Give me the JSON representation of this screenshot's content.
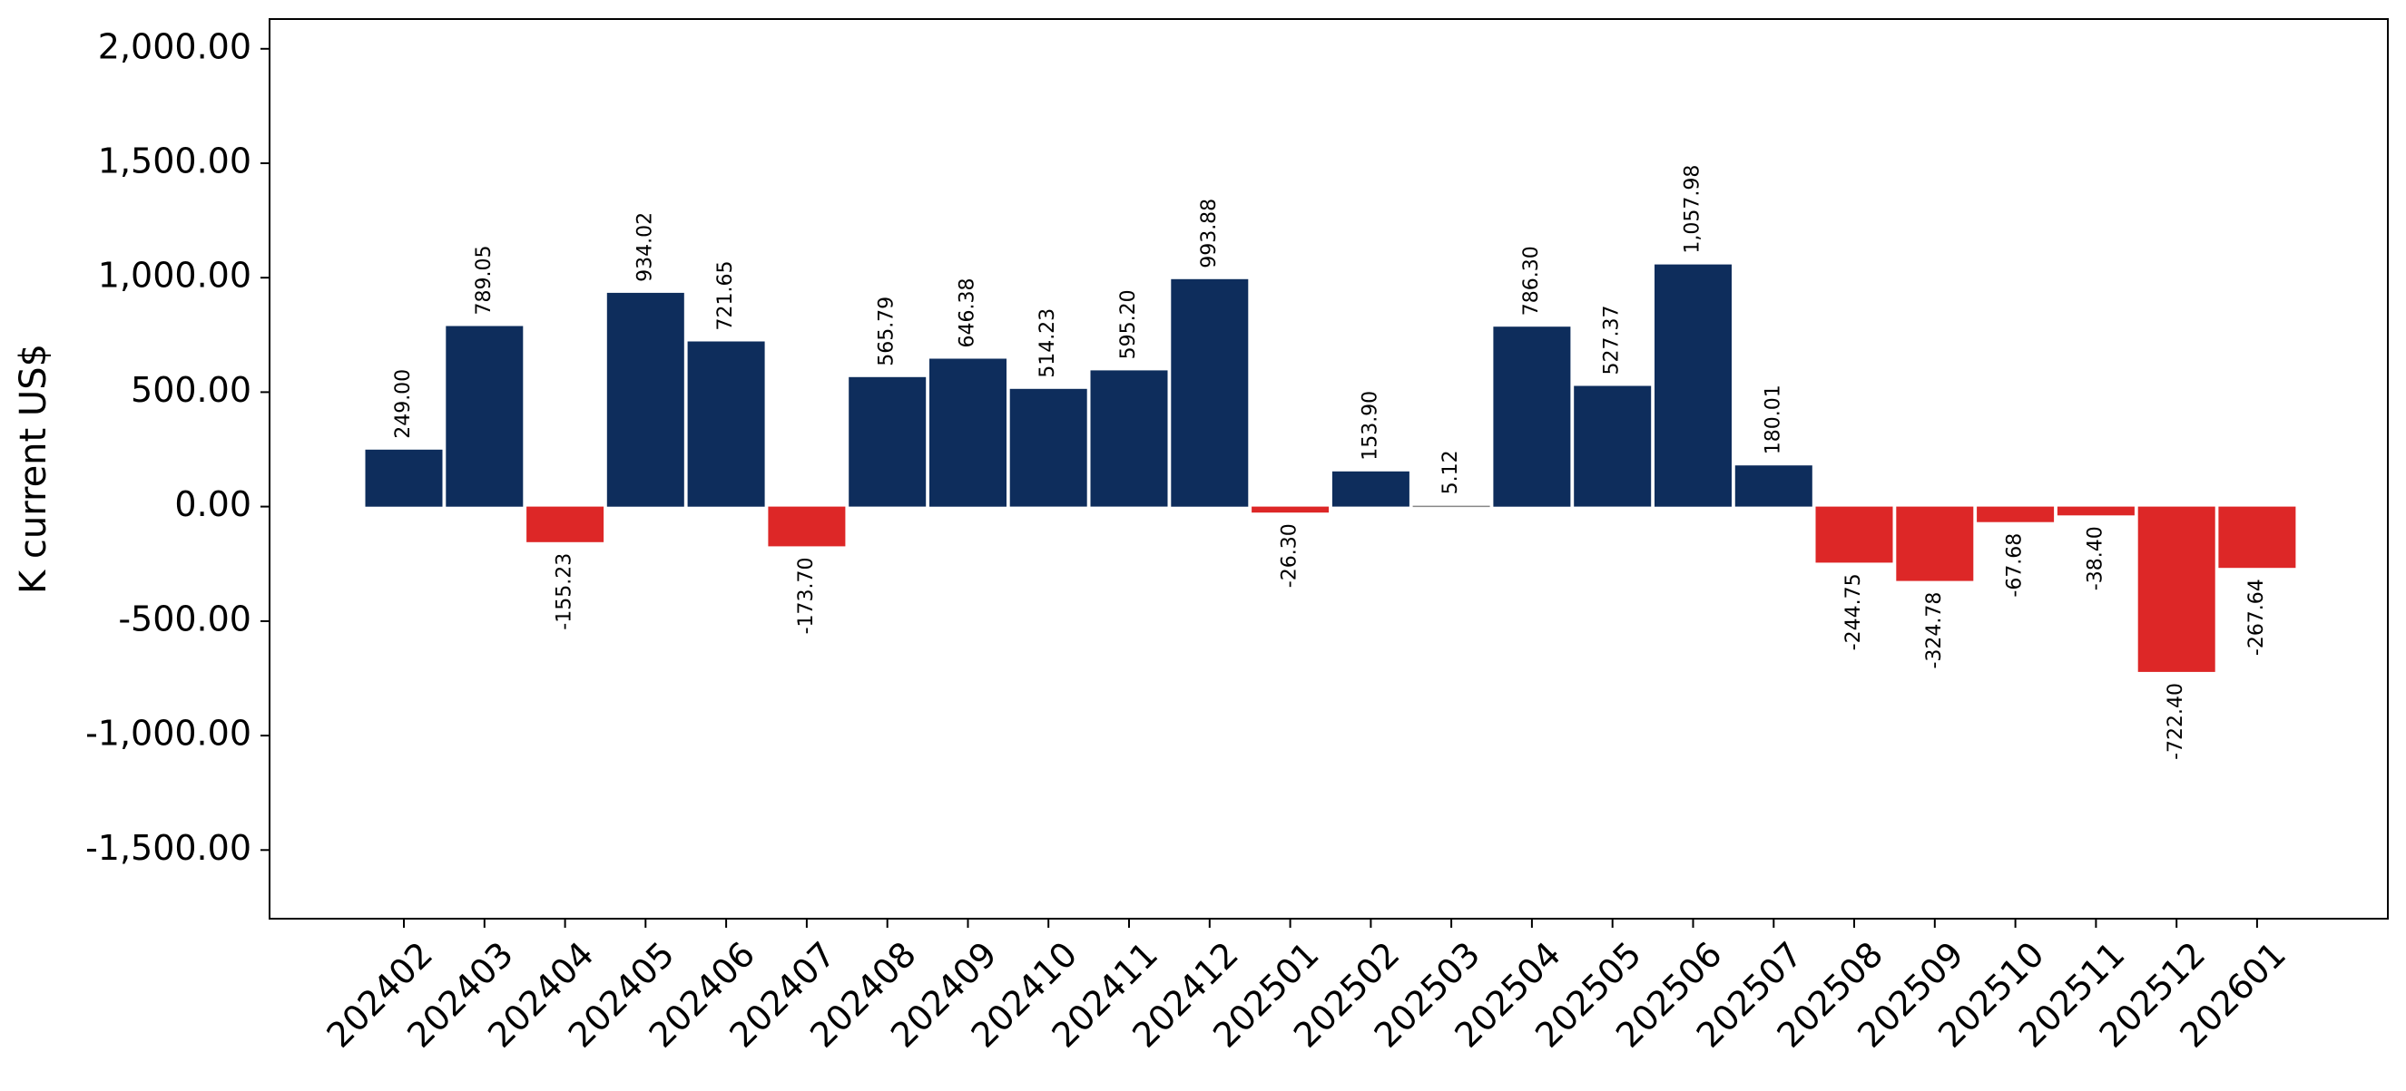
{
  "chart_data": {
    "type": "bar",
    "title": "",
    "xlabel": "",
    "ylabel": "K current US$",
    "ylim": [
      -1800,
      2130
    ],
    "yticks": [
      -1500,
      -1000,
      -500,
      0,
      500,
      1000,
      1500,
      2000
    ],
    "ytick_labels": [
      "-1,500.00",
      "-1,000.00",
      "-500.00",
      "0.00",
      "500.00",
      "1,000.00",
      "1,500.00",
      "2,000.00"
    ],
    "grid": false,
    "legend": "none",
    "colors": {
      "positive": "#0e2d5c",
      "negative": "#dd2727"
    },
    "categories": [
      "202402",
      "202403",
      "202404",
      "202405",
      "202406",
      "202407",
      "202408",
      "202409",
      "202410",
      "202411",
      "202412",
      "202501",
      "202502",
      "202503",
      "202504",
      "202505",
      "202506",
      "202507",
      "202508",
      "202509",
      "202510",
      "202511",
      "202512",
      "202601"
    ],
    "values": [
      249.0,
      789.05,
      -155.23,
      934.02,
      721.65,
      -173.7,
      565.79,
      646.38,
      514.23,
      595.2,
      993.88,
      -26.3,
      153.9,
      5.12,
      786.3,
      527.37,
      1057.98,
      180.01,
      -244.75,
      -324.78,
      -67.68,
      -38.4,
      -722.4,
      -267.64
    ],
    "value_labels": [
      "249.00",
      "789.05",
      "-155.23",
      "934.02",
      "721.65",
      "-173.70",
      "565.79",
      "646.38",
      "514.23",
      "595.20",
      "993.88",
      "-26.30",
      "153.90",
      "5.12",
      "786.30",
      "527.37",
      "1,057.98",
      "180.01",
      "-244.75",
      "-324.78",
      "-67.68",
      "-38.40",
      "-722.40",
      "-267.64"
    ]
  }
}
